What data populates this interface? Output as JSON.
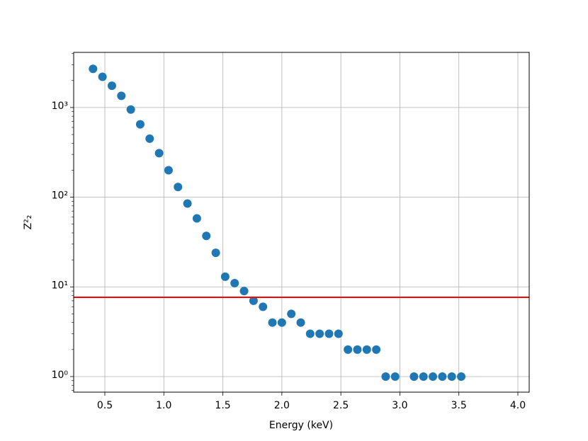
{
  "chart_data": {
    "type": "scatter",
    "xlabel": "Energy (keV)",
    "ylabel": "Z²₂",
    "x": [
      0.4,
      0.48,
      0.56,
      0.64,
      0.72,
      0.8,
      0.88,
      0.96,
      1.04,
      1.12,
      1.2,
      1.28,
      1.36,
      1.44,
      1.52,
      1.6,
      1.68,
      1.76,
      1.84,
      1.92,
      2.0,
      2.08,
      2.16,
      2.24,
      2.32,
      2.4,
      2.48,
      2.56,
      2.64,
      2.72,
      2.8,
      2.88,
      2.96,
      3.12,
      3.2,
      3.28,
      3.36,
      3.44,
      3.52
    ],
    "series": [
      {
        "color": "#1f77b4",
        "values": [
          2700,
          2200,
          1750,
          1350,
          950,
          650,
          450,
          310,
          200,
          130,
          85,
          58,
          37,
          24,
          13,
          11,
          9,
          7,
          6,
          4,
          4,
          5,
          4,
          3,
          3,
          3,
          3,
          2,
          2,
          2,
          2,
          1,
          1,
          1,
          1,
          1,
          1,
          1,
          1
        ]
      }
    ],
    "hline": {
      "value": 7.65,
      "color": "#ff0000"
    },
    "xlim": [
      0.236,
      4.096
    ],
    "xticks": [
      0.5,
      {
        "value": 1.0,
        "label": "1.0"
      },
      1.5,
      {
        "value": 2.0,
        "label": "2.0"
      },
      2.5,
      {
        "value": 3.0,
        "label": "3.0"
      },
      3.5,
      {
        "value": 4.0,
        "label": "4.0"
      }
    ],
    "ylim": [
      0.67,
      4120
    ],
    "yscale": "log",
    "yticks": [
      {
        "value": 1,
        "label": "10⁰"
      },
      {
        "value": 10,
        "label": "10¹"
      },
      {
        "value": 100,
        "label": "10²"
      },
      {
        "value": 1000,
        "label": "10³"
      }
    ],
    "yminorticks": [
      0.7,
      0.8,
      0.9,
      2,
      3,
      4,
      5,
      6,
      7,
      8,
      9,
      20,
      30,
      40,
      50,
      60,
      70,
      80,
      90,
      200,
      300,
      400,
      500,
      600,
      700,
      800,
      900,
      2000,
      3000,
      4000
    ],
    "grid": true
  }
}
